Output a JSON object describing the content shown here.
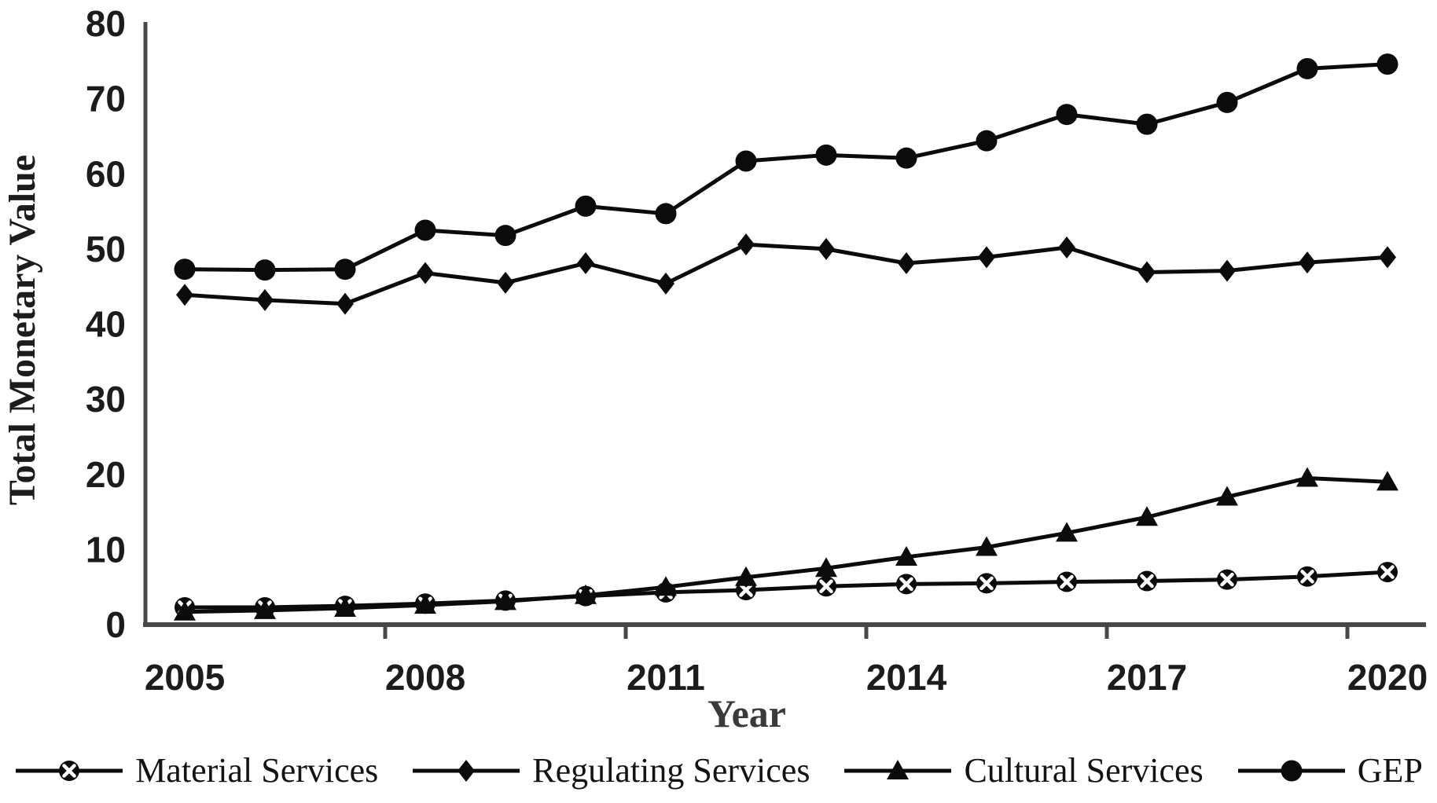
{
  "figure": {
    "background": "#ffffff",
    "text_color": "#1c1c1c",
    "axis_color": "#474747",
    "line_color": "#0b0b0b"
  },
  "chart_data": {
    "type": "line",
    "title": "",
    "xlabel": "Year",
    "ylabel": "Total Monetary Value",
    "x": [
      2005,
      2006,
      2007,
      2008,
      2009,
      2010,
      2011,
      2012,
      2013,
      2014,
      2015,
      2016,
      2017,
      2018,
      2019,
      2020
    ],
    "xtick_labels": [
      "2005",
      "2008",
      "2011",
      "2014",
      "2017",
      "2020"
    ],
    "xtick_years": [
      2005,
      2008,
      2011,
      2014,
      2017,
      2020
    ],
    "yticks": [
      0,
      10,
      20,
      30,
      40,
      50,
      60,
      70,
      80
    ],
    "ylim": [
      0,
      80
    ],
    "grid": false,
    "legend_position": "bottom",
    "series": [
      {
        "name": "Material Services",
        "marker": "circle-x",
        "values": [
          2.3,
          2.3,
          2.5,
          2.8,
          3.2,
          3.8,
          4.3,
          4.6,
          5.1,
          5.4,
          5.5,
          5.7,
          5.8,
          6.0,
          6.4,
          7.0
        ]
      },
      {
        "name": "Regulating Services",
        "marker": "diamond",
        "values": [
          43.9,
          43.2,
          42.7,
          46.8,
          45.5,
          48.1,
          45.4,
          50.6,
          50.0,
          48.1,
          48.9,
          50.2,
          46.9,
          47.1,
          48.2,
          48.9
        ]
      },
      {
        "name": "Cultural Services",
        "marker": "triangle",
        "values": [
          1.7,
          1.9,
          2.2,
          2.6,
          3.1,
          3.9,
          5.0,
          6.3,
          7.5,
          9.0,
          10.3,
          12.2,
          14.3,
          17.0,
          19.5,
          19.0
        ]
      },
      {
        "name": "GEP",
        "marker": "circle",
        "values": [
          47.3,
          47.2,
          47.3,
          52.5,
          51.8,
          55.7,
          54.7,
          61.7,
          62.5,
          62.1,
          64.4,
          67.9,
          66.6,
          69.5,
          74.0,
          74.6
        ]
      }
    ]
  }
}
